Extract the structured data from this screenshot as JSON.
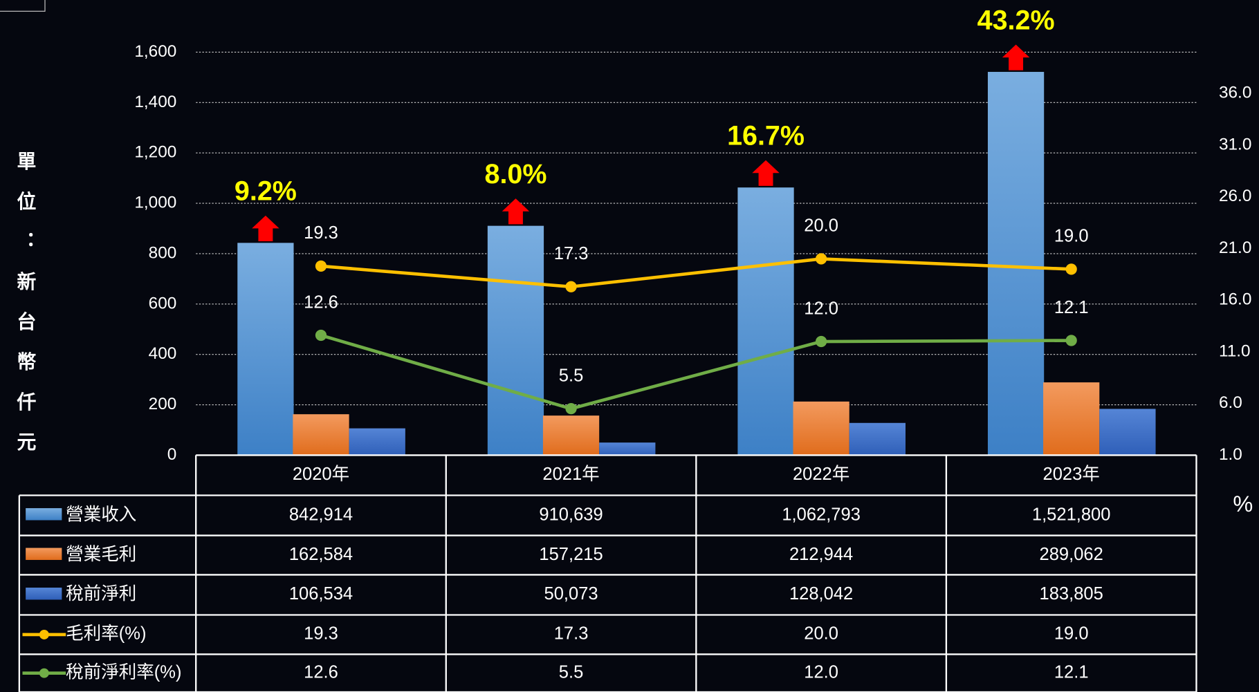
{
  "chart_data": {
    "type": "bar",
    "y_label": "單位：新台幣仟元",
    "y2_label": "%",
    "categories": [
      "2020年",
      "2021年",
      "2022年",
      "2023年"
    ],
    "series": [
      {
        "name": "營業收入",
        "type": "bar",
        "color": "#5b9bd5",
        "values": [
          842.914,
          910.639,
          1062.793,
          1521.8
        ],
        "value_labels": [
          "842,914",
          "910,639",
          "1,062,793",
          "1,521,800"
        ]
      },
      {
        "name": "營業毛利",
        "type": "bar",
        "color": "#ed7d31",
        "values": [
          162.584,
          157.215,
          212.944,
          289.062
        ],
        "value_labels": [
          "162,584",
          "157,215",
          "212,944",
          "289,062"
        ]
      },
      {
        "name": "稅前淨利",
        "type": "bar",
        "color": "#4472c4",
        "values": [
          106.534,
          50.073,
          128.042,
          183.805
        ],
        "value_labels": [
          "106,534",
          "50,073",
          "128,042",
          "183,805"
        ]
      },
      {
        "name": "毛利率(%)",
        "type": "line",
        "axis": "y2",
        "color": "#ffc000",
        "values": [
          19.3,
          17.3,
          20.0,
          19.0
        ],
        "value_labels": [
          "19.3",
          "17.3",
          "20.0",
          "19.0"
        ]
      },
      {
        "name": "稅前淨利率(%)",
        "type": "line",
        "axis": "y2",
        "color": "#70ad47",
        "values": [
          12.6,
          5.5,
          12.0,
          12.1
        ],
        "value_labels": [
          "12.6",
          "5.5",
          "12.0",
          "12.1"
        ]
      }
    ],
    "growth": {
      "color": "#ffff00",
      "arrow_color": "#ff0000",
      "values": [
        9.2,
        8.0,
        16.7,
        43.2
      ],
      "value_labels": [
        "9.2%",
        "8.0%",
        "16.7%",
        "43.2%"
      ]
    },
    "ylim": [
      0,
      1600
    ],
    "yticks": [
      0,
      200,
      400,
      600,
      800,
      {
        "value": 1000,
        "label": "1,000"
      },
      {
        "value": 1200,
        "label": "1,200"
      },
      {
        "value": 1400,
        "label": "1,400"
      },
      {
        "value": 1600,
        "label": "1,600"
      }
    ],
    "y2lim": [
      1,
      40
    ],
    "y2ticks": [
      {
        "value": 1,
        "label": "1.0"
      },
      {
        "value": 6,
        "label": "6.0"
      },
      {
        "value": 11,
        "label": "11.0"
      },
      {
        "value": 16,
        "label": "16.0"
      },
      {
        "value": 21,
        "label": "21.0"
      },
      {
        "value": 26,
        "label": "26.0"
      },
      {
        "value": 31,
        "label": "31.0"
      },
      {
        "value": 36,
        "label": "36.0"
      }
    ],
    "grid": true
  }
}
